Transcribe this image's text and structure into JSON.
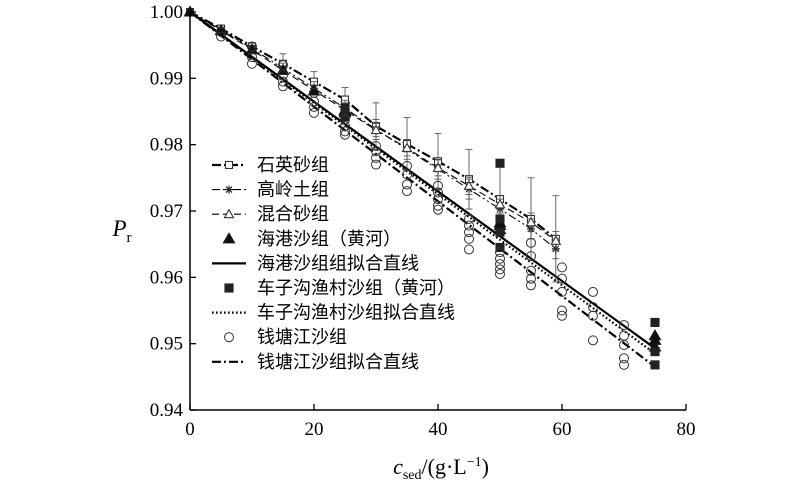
{
  "chart_data": {
    "type": "scatter",
    "xlabel": {
      "main": "c",
      "sub": "sed",
      "rest": "/(g·L",
      "sup": "−1",
      "close": ")"
    },
    "ylabel": {
      "main": "P",
      "sub": "r"
    },
    "xlim": [
      0,
      80
    ],
    "ylim": [
      0.94,
      1.0
    ],
    "xticks": [
      "0",
      "20",
      "40",
      "60",
      "80"
    ],
    "yticks": [
      "0.94",
      "0.95",
      "0.96",
      "0.97",
      "0.98",
      "0.99",
      "1.00"
    ],
    "grid": false,
    "legend_position": "center-left",
    "series": [
      {
        "name": "石英砂组",
        "marker": "square-open",
        "line": "dash-dot",
        "x": [
          0,
          5,
          10,
          15,
          20,
          25,
          30,
          35,
          40,
          45,
          50,
          55,
          59
        ],
        "y": [
          1.0,
          0.9975,
          0.9948,
          0.9922,
          0.9895,
          0.9868,
          0.9828,
          0.9801,
          0.9775,
          0.9748,
          0.9718,
          0.9688,
          0.9658
        ],
        "err": [
          0,
          0.0004,
          0.0006,
          0.0015,
          0.0015,
          0.0018,
          0.0035,
          0.004,
          0.0042,
          0.0045,
          0.0055,
          0.0062,
          0.0065
        ]
      },
      {
        "name": "高岭土组",
        "marker": "star",
        "line": "dash-dot-dot",
        "x": [
          0,
          5,
          10,
          15,
          20,
          25,
          30,
          35,
          40,
          45,
          50,
          55,
          59
        ],
        "y": [
          1.0,
          0.9973,
          0.9945,
          0.9915,
          0.9885,
          0.9855,
          0.9823,
          0.9793,
          0.9763,
          0.9733,
          0.9703,
          0.9673,
          0.9643
        ],
        "err": [
          0,
          0.0003,
          0.0005,
          0.0008,
          0.001,
          0.0012,
          0.0015,
          0.0015,
          0.0015,
          0.0015,
          0.0015,
          0.0015,
          0.0015
        ]
      },
      {
        "name": "混合砂组",
        "marker": "triangle-open",
        "line": "dashed",
        "x": [
          0,
          5,
          10,
          15,
          20,
          25,
          30,
          35,
          40,
          45,
          50,
          55,
          59
        ],
        "y": [
          1.0,
          0.9972,
          0.9943,
          0.9912,
          0.9882,
          0.9852,
          0.9822,
          0.9795,
          0.9765,
          0.9738,
          0.971,
          0.9683,
          0.9655
        ],
        "err": [
          0,
          0.0003,
          0.0004,
          0.0006,
          0.0007,
          0.0008,
          0.001,
          0.0012,
          0.0012,
          0.0013,
          0.0013,
          0.0014,
          0.0014
        ]
      },
      {
        "name": "海港沙组（黄河）",
        "marker": "triangle-filled",
        "x": [
          0,
          5,
          10,
          15,
          20,
          25,
          25,
          25,
          50,
          50,
          50,
          75,
          75,
          75
        ],
        "y": [
          1.0,
          0.9972,
          0.9943,
          0.9912,
          0.9881,
          0.9852,
          0.985,
          0.9848,
          0.9682,
          0.9678,
          0.9672,
          0.9512,
          0.9505,
          0.9495
        ]
      },
      {
        "name": "海港沙组组拟合直线",
        "line": "solid",
        "x": [
          0,
          75
        ],
        "y": [
          1.0,
          0.9493
        ]
      },
      {
        "name": "车子沟渔村沙组（黄河）",
        "marker": "square-filled",
        "x": [
          25,
          25,
          25,
          50,
          50,
          50,
          50,
          75,
          75,
          75
        ],
        "y": [
          0.9855,
          0.9848,
          0.9842,
          0.9772,
          0.9688,
          0.9668,
          0.9645,
          0.9532,
          0.9488,
          0.9468
        ]
      },
      {
        "name": "车子沟渔村沙组拟合直线",
        "line": "dotted",
        "x": [
          0,
          75
        ],
        "y": [
          1.0,
          0.9485
        ]
      },
      {
        "name": "钱塘江沙组",
        "marker": "circle-open",
        "x": [
          5,
          5,
          10,
          10,
          10,
          15,
          15,
          15,
          15,
          20,
          20,
          20,
          20,
          25,
          25,
          25,
          25,
          30,
          30,
          30,
          30,
          35,
          35,
          35,
          35,
          40,
          40,
          40,
          40,
          40,
          45,
          45,
          45,
          45,
          45,
          50,
          50,
          50,
          50,
          50,
          55,
          55,
          55,
          55,
          55,
          60,
          60,
          60,
          60,
          60,
          65,
          65,
          65,
          65,
          70,
          70,
          70,
          70,
          70
        ],
        "y": [
          0.997,
          0.9963,
          0.9948,
          0.9932,
          0.9922,
          0.992,
          0.9905,
          0.9895,
          0.9888,
          0.9878,
          0.9865,
          0.9857,
          0.9848,
          0.9838,
          0.9828,
          0.982,
          0.9815,
          0.9798,
          0.979,
          0.978,
          0.977,
          0.9768,
          0.9755,
          0.974,
          0.973,
          0.9738,
          0.9728,
          0.9718,
          0.9708,
          0.9702,
          0.9688,
          0.9678,
          0.9668,
          0.9658,
          0.9642,
          0.9638,
          0.9628,
          0.962,
          0.9612,
          0.9605,
          0.9652,
          0.9632,
          0.961,
          0.9598,
          0.9588,
          0.9615,
          0.9598,
          0.9578,
          0.955,
          0.9542,
          0.9578,
          0.9555,
          0.9542,
          0.9505,
          0.9528,
          0.9512,
          0.9498,
          0.9478,
          0.9468
        ]
      },
      {
        "name": "钱塘江沙组拟合直线",
        "line": "dash-dot",
        "x": [
          0,
          75
        ],
        "y": [
          1.0,
          0.9465
        ]
      }
    ]
  }
}
